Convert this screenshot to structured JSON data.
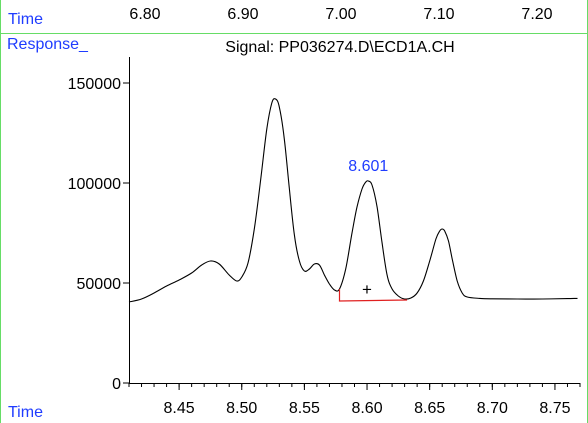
{
  "header": {
    "time_label": "Time",
    "tick_labels": [
      "6.80",
      "6.90",
      "7.00",
      "7.10",
      "7.20"
    ]
  },
  "chart_data": {
    "type": "line",
    "title": "Signal: PP036274.D\\ECD1A.CH",
    "ylabel": "Response_",
    "xlabel": "Time",
    "xlim": [
      8.41,
      8.77
    ],
    "ylim": [
      0,
      163000
    ],
    "x_ticks": [
      "8.45",
      "8.50",
      "8.55",
      "8.60",
      "8.65",
      "8.70",
      "8.75"
    ],
    "y_ticks": [
      "0",
      "50000",
      "100000",
      "150000"
    ],
    "series": [
      {
        "x": [
          8.41,
          8.42,
          8.43,
          8.44,
          8.45,
          8.46,
          8.468,
          8.475,
          8.482,
          8.49,
          8.496,
          8.5,
          8.505,
          8.51,
          8.515,
          8.52,
          8.524,
          8.527,
          8.53,
          8.534,
          8.538,
          8.542,
          8.546,
          8.55,
          8.554,
          8.558,
          8.562,
          8.566,
          8.57,
          8.574,
          8.578,
          8.583,
          8.588,
          8.592,
          8.596,
          8.599,
          8.601,
          8.604,
          8.608,
          8.612,
          8.616,
          8.62,
          8.625,
          8.63,
          8.635,
          8.64,
          8.645,
          8.65,
          8.655,
          8.658,
          8.66,
          8.662,
          8.665,
          8.668,
          8.672,
          8.676,
          8.68,
          8.69,
          8.7,
          8.72,
          8.74,
          8.76,
          8.768
        ],
        "y": [
          40500,
          42000,
          45000,
          48500,
          51500,
          55000,
          59000,
          61000,
          59500,
          54000,
          51000,
          53000,
          60000,
          77000,
          101000,
          127000,
          140000,
          142000,
          138000,
          122000,
          97000,
          74000,
          61000,
          56000,
          57000,
          59500,
          59000,
          54000,
          49500,
          46500,
          47000,
          57000,
          75000,
          88000,
          97000,
          100500,
          101000,
          99000,
          88000,
          70000,
          54000,
          47000,
          43500,
          42000,
          42500,
          45000,
          51000,
          61000,
          72000,
          76000,
          77000,
          76000,
          71000,
          62000,
          51000,
          45000,
          43000,
          42300,
          42100,
          42000,
          42000,
          42200,
          42300
        ]
      }
    ],
    "peak": {
      "label": "8.601",
      "x": 8.601,
      "y": 101000
    },
    "baseline": {
      "x_start": 8.578,
      "x_end": 8.632,
      "y_start": 41000,
      "y_end": 41500,
      "tick_top": 47000
    },
    "marker": {
      "symbol": "+",
      "x": 8.6,
      "y": 47000
    },
    "colors": {
      "trace": "#000000",
      "baseline": "#e02020",
      "label": "#1f3cff",
      "frame": "#66dd66",
      "axis": "#000000"
    }
  }
}
